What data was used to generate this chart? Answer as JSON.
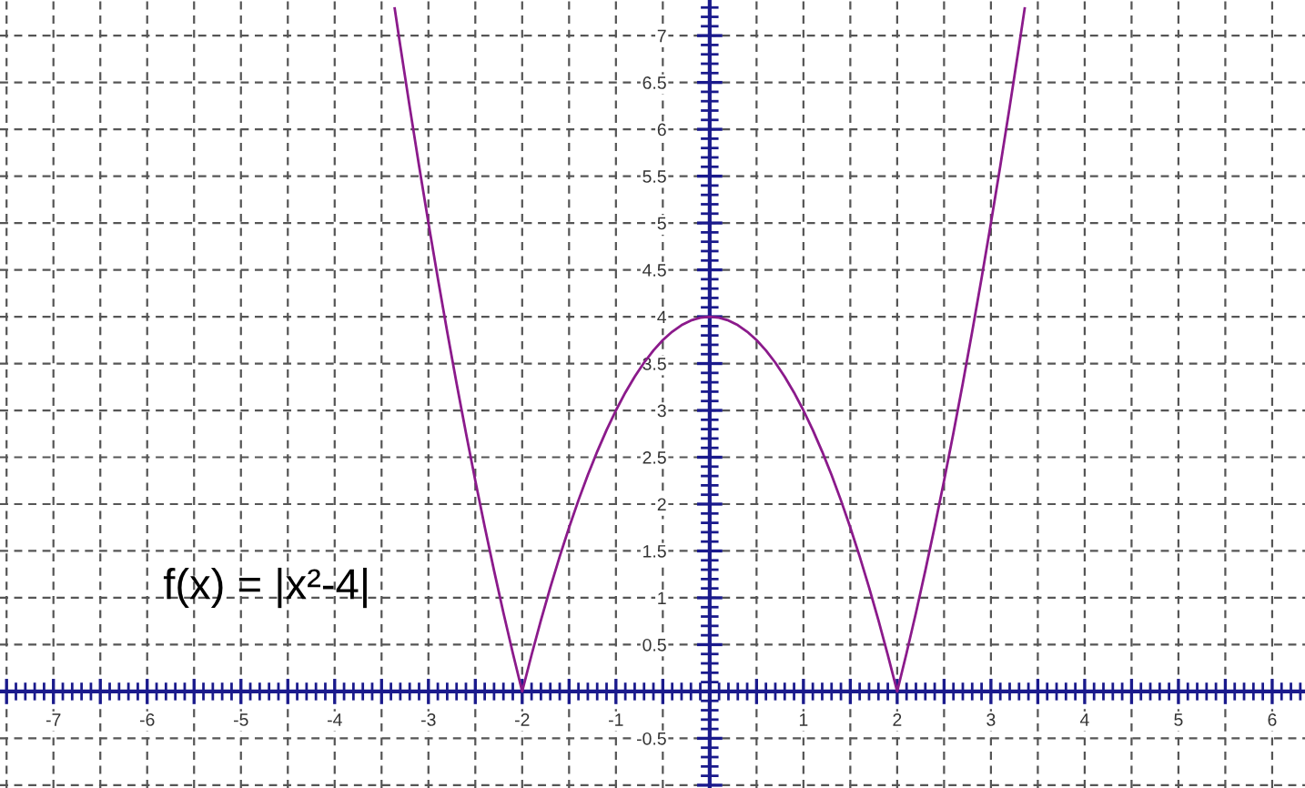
{
  "chart_data": {
    "type": "line",
    "annotations": [
      "f(x) = |x²-4|"
    ],
    "series": [
      {
        "color": "#8b1a8b",
        "x": [
          -3.36,
          -3.3,
          -3.2,
          -3.1,
          -3.0,
          -2.9,
          -2.8,
          -2.7,
          -2.6,
          -2.5,
          -2.4,
          -2.3,
          -2.2,
          -2.1,
          -2.0,
          -1.9,
          -1.8,
          -1.7,
          -1.6,
          -1.5,
          -1.4,
          -1.3,
          -1.2,
          -1.1,
          -1.0,
          -0.9,
          -0.8,
          -0.7,
          -0.6,
          -0.5,
          -0.4,
          -0.3,
          -0.2,
          -0.1,
          0.0,
          0.1,
          0.2,
          0.3,
          0.4,
          0.5,
          0.6,
          0.7,
          0.8,
          0.9,
          1.0,
          1.1,
          1.2,
          1.3,
          1.4,
          1.5,
          1.6,
          1.7,
          1.8,
          1.9,
          2.0,
          2.1,
          2.2,
          2.3,
          2.4,
          2.5,
          2.6,
          2.7,
          2.8,
          2.9,
          3.0,
          3.1,
          3.2,
          3.3,
          3.36
        ],
        "values": [
          7.29,
          6.89,
          6.24,
          5.61,
          5,
          4.41,
          3.84,
          3.29,
          2.76,
          2.25,
          1.76,
          1.29,
          0.84,
          0.41,
          0,
          0.39,
          0.76,
          1.11,
          1.44,
          1.75,
          2.04,
          2.31,
          2.56,
          2.79,
          3,
          3.19,
          3.36,
          3.51,
          3.64,
          3.75,
          3.84,
          3.91,
          3.96,
          3.99,
          4,
          3.99,
          3.96,
          3.91,
          3.84,
          3.75,
          3.64,
          3.51,
          3.36,
          3.19,
          3,
          2.79,
          2.56,
          2.31,
          2.04,
          1.75,
          1.44,
          1.11,
          0.76,
          0.39,
          0,
          0.41,
          0.84,
          1.29,
          1.76,
          2.25,
          2.76,
          3.29,
          3.84,
          4.41,
          5,
          5.61,
          6.24,
          6.89,
          7.29
        ]
      }
    ],
    "xlim": [
      -7.57,
      6.35
    ],
    "ylim": [
      -1.03,
      7.38
    ],
    "xticks": [
      {
        "value": -7.5,
        "label": null
      },
      -7,
      {
        "value": -6.5,
        "label": null
      },
      -6,
      {
        "value": -5.5,
        "label": null
      },
      -5,
      {
        "value": -4.5,
        "label": null
      },
      -4,
      {
        "value": -3.5,
        "label": null
      },
      -3,
      {
        "value": -2.5,
        "label": null
      },
      -2,
      {
        "value": -1.5,
        "label": null
      },
      -1,
      {
        "value": -0.5,
        "label": null
      },
      {
        "value": 0,
        "label": null
      },
      {
        "value": 0.5,
        "label": null
      },
      1,
      {
        "value": 1.5,
        "label": null
      },
      2,
      {
        "value": 2.5,
        "label": null
      },
      3,
      {
        "value": 3.5,
        "label": null
      },
      4,
      {
        "value": 4.5,
        "label": null
      },
      5,
      {
        "value": 5.5,
        "label": null
      },
      6
    ],
    "yticks": [
      {
        "value": -1,
        "label": null
      },
      -0.5,
      {
        "value": 0,
        "label": null
      },
      0.5,
      1,
      1.5,
      2,
      2.5,
      3,
      3.5,
      4,
      4.5,
      5,
      5.5,
      6,
      6.5,
      7
    ],
    "grid": true,
    "marker": "none",
    "line_style": "solid"
  }
}
